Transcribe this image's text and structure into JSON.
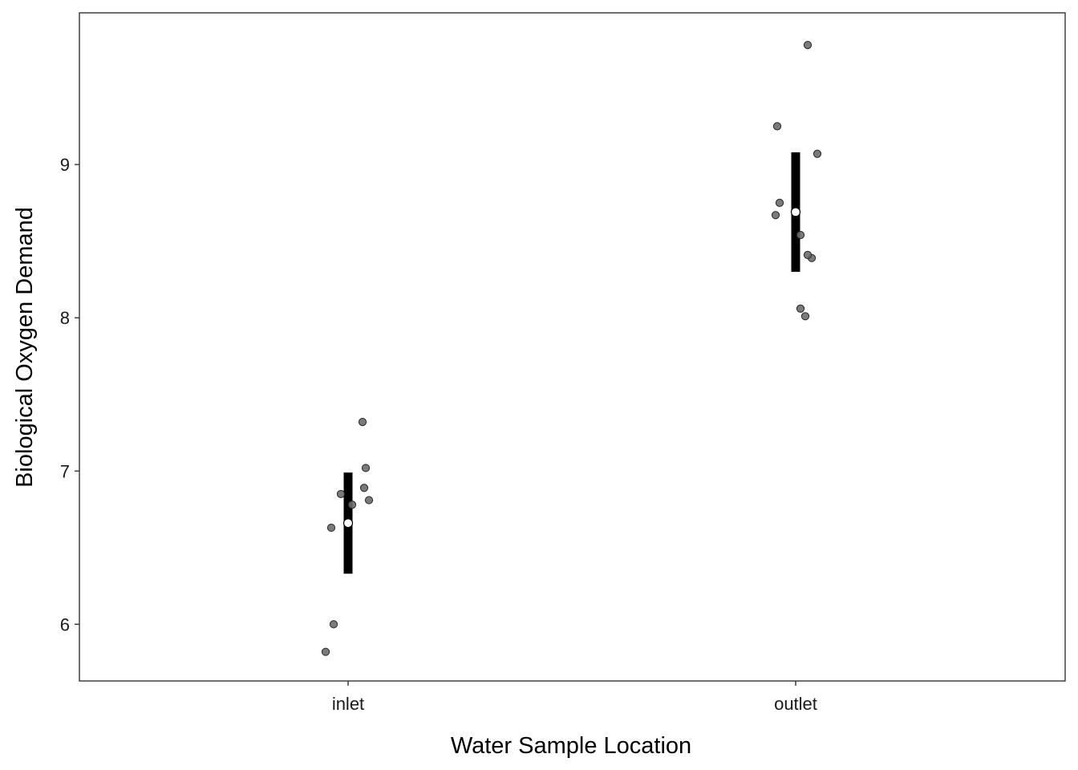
{
  "chart_data": {
    "type": "scatter",
    "xlabel": "Water Sample Location",
    "ylabel": "Biological Oxygen Demand",
    "categories": [
      "inlet",
      "outlet"
    ],
    "y_ticks": [
      "6",
      "7",
      "8",
      "9"
    ],
    "ylim": [
      5.63,
      9.99
    ],
    "grid": false,
    "points": {
      "inlet": [
        5.82,
        6.0,
        6.63,
        6.78,
        6.81,
        6.85,
        6.89,
        7.02,
        7.32
      ],
      "outlet": [
        8.01,
        8.06,
        8.39,
        8.41,
        8.54,
        8.67,
        8.75,
        9.07,
        9.25,
        9.78
      ]
    },
    "summary": [
      {
        "category": "inlet",
        "mean": 6.66,
        "lower": 6.33,
        "upper": 6.99
      },
      {
        "category": "outlet",
        "mean": 8.69,
        "lower": 8.3,
        "upper": 9.08
      }
    ],
    "colors": {
      "point_fill": "#6b6b6b",
      "point_stroke": "#262626",
      "interval": "#000000",
      "mean_marker": "#ffffff",
      "panel_border": "#333333"
    }
  }
}
